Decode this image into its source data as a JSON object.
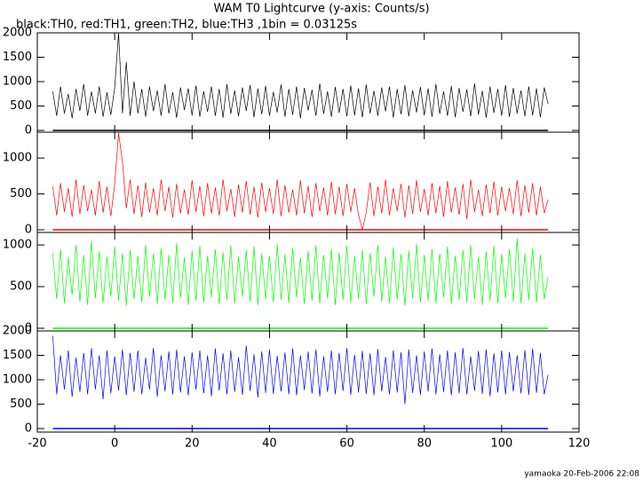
{
  "chart_data": {
    "type": "line",
    "title": "WAM T0 Lightcurve (y-axis: Counts/s)",
    "subtitle": "black:TH0, red:TH1, green:TH2, blue:TH3 ,1bin = 0.03125s",
    "footer": "yamaoka 20-Feb-2006 22:08",
    "xlim": [
      -20,
      120
    ],
    "xticks": [
      -20,
      0,
      20,
      40,
      60,
      80,
      100,
      120
    ],
    "x": [
      -16,
      -15,
      -14,
      -13,
      -12,
      -11,
      -10,
      -9,
      -8,
      -7,
      -6,
      -5,
      -4,
      -3,
      -2,
      -1,
      0,
      1,
      2,
      3,
      4,
      5,
      6,
      7,
      8,
      9,
      10,
      11,
      12,
      13,
      14,
      15,
      16,
      17,
      18,
      19,
      20,
      21,
      22,
      23,
      24,
      25,
      26,
      27,
      28,
      29,
      30,
      31,
      32,
      33,
      34,
      35,
      36,
      37,
      38,
      39,
      40,
      41,
      42,
      43,
      44,
      45,
      46,
      47,
      48,
      49,
      50,
      51,
      52,
      53,
      54,
      55,
      56,
      57,
      58,
      59,
      60,
      61,
      62,
      63,
      64,
      65,
      66,
      67,
      68,
      69,
      70,
      71,
      72,
      73,
      74,
      75,
      76,
      77,
      78,
      79,
      80,
      81,
      82,
      83,
      84,
      85,
      86,
      87,
      88,
      89,
      90,
      91,
      92,
      93,
      94,
      95,
      96,
      97,
      98,
      99,
      100,
      101,
      102,
      103,
      104,
      105,
      106,
      107,
      108,
      109,
      110,
      111,
      112
    ],
    "series": [
      {
        "color": "#000000",
        "ylim": [
          -36,
          2000
        ],
        "yticks": [
          0,
          500,
          1000,
          1500,
          2000
        ],
        "values": [
          800,
          300,
          900,
          350,
          750,
          250,
          850,
          400,
          950,
          300,
          800,
          350,
          900,
          280,
          780,
          320,
          870,
          2000,
          350,
          1400,
          300,
          1000,
          350,
          850,
          280,
          900,
          400,
          820,
          300,
          950,
          350,
          780,
          260,
          880,
          420,
          860,
          310,
          920,
          280,
          800,
          380,
          900,
          300,
          850,
          260,
          950,
          340,
          820,
          290,
          880,
          400,
          930,
          270,
          860,
          330,
          910,
          300,
          790,
          370,
          940,
          280,
          850,
          320,
          900,
          250,
          870,
          410,
          830,
          300,
          960,
          340,
          800,
          280,
          890,
          360,
          850,
          290,
          920,
          310,
          860,
          270,
          940,
          350,
          810,
          300,
          880,
          390,
          900,
          260,
          850,
          330,
          930,
          290,
          820,
          370,
          890,
          310,
          860,
          280,
          950,
          340,
          800,
          300,
          910,
          270,
          870,
          380,
          840,
          290,
          960,
          320,
          810,
          260,
          900,
          360,
          850,
          300,
          930,
          280,
          870,
          350,
          820,
          290,
          900,
          310,
          860,
          270,
          880,
          540
        ]
      },
      {
        "color": "#ff0000",
        "ylim": [
          -37,
          1360
        ],
        "yticks": [
          0,
          500,
          1000
        ],
        "values": [
          600,
          200,
          650,
          250,
          580,
          180,
          700,
          220,
          620,
          260,
          560,
          200,
          680,
          240,
          600,
          190,
          640,
          1350,
          950,
          300,
          700,
          220,
          620,
          180,
          660,
          240,
          580,
          200,
          700,
          260,
          600,
          170,
          640,
          230,
          560,
          210,
          690,
          250,
          610,
          190,
          650,
          230,
          590,
          200,
          700,
          260,
          570,
          180,
          630,
          240,
          680,
          210,
          600,
          170,
          660,
          250,
          580,
          220,
          700,
          190,
          620,
          240,
          560,
          200,
          690,
          230,
          610,
          180,
          650,
          260,
          590,
          200,
          670,
          220,
          600,
          190,
          640,
          250,
          580,
          210,
          0,
          240,
          660,
          190,
          600,
          230,
          700,
          200,
          580,
          260,
          640,
          170,
          620,
          220,
          690,
          250,
          570,
          200,
          650,
          230,
          610,
          180,
          680,
          240,
          590,
          210,
          640,
          150,
          700,
          250,
          560,
          190,
          630,
          230,
          670,
          200,
          600,
          260,
          580,
          220,
          690,
          190,
          620,
          240,
          650,
          200,
          600,
          230,
          420
        ]
      },
      {
        "color": "#00ff00",
        "ylim": [
          -32,
          1150
        ],
        "yticks": [
          0,
          500,
          1000
        ],
        "values": [
          900,
          350,
          950,
          300,
          850,
          400,
          1000,
          320,
          880,
          280,
          1050,
          360,
          920,
          300,
          860,
          380,
          980,
          330,
          900,
          270,
          940,
          350,
          870,
          310,
          1000,
          380,
          900,
          290,
          960,
          340,
          880,
          300,
          1020,
          360,
          850,
          280,
          930,
          330,
          990,
          310,
          870,
          370,
          950,
          290,
          910,
          340,
          1000,
          300,
          860,
          380,
          940,
          320,
          980,
          280,
          900,
          350,
          870,
          310,
          1010,
          340,
          890,
          300,
          960,
          370,
          850,
          290,
          930,
          330,
          1000,
          300,
          880,
          360,
          950,
          280,
          910,
          340,
          990,
          310,
          870,
          350,
          940,
          290,
          900,
          380,
          1000,
          320,
          860,
          300,
          970,
          340,
          890,
          270,
          930,
          360,
          1010,
          310,
          880,
          330,
          950,
          300,
          900,
          370,
          980,
          290,
          870,
          340,
          940,
          310,
          1000,
          350,
          860,
          280,
          920,
          330,
          990,
          300,
          890,
          360,
          950,
          320,
          1080,
          300,
          900,
          340,
          960,
          310,
          880,
          350,
          620
        ]
      },
      {
        "color": "#0000ff",
        "ylim": [
          -73,
          2000
        ],
        "yticks": [
          0,
          500,
          1000,
          1500,
          2000
        ],
        "values": [
          1900,
          700,
          1500,
          800,
          1600,
          650,
          1450,
          750,
          1550,
          700,
          1650,
          800,
          1500,
          600,
          1600,
          720,
          1480,
          780,
          1620,
          680,
          1550,
          750,
          1600,
          700,
          1450,
          800,
          1650,
          650,
          1500,
          760,
          1580,
          700,
          1620,
          740,
          1480,
          680,
          1560,
          800,
          1600,
          720,
          1500,
          660,
          1640,
          780,
          1540,
          700,
          1600,
          750,
          1460,
          690,
          1700,
          770,
          1520,
          640,
          1580,
          730,
          1620,
          710,
          1490,
          760,
          1560,
          700,
          1640,
          680,
          1500,
          790,
          1580,
          720,
          1620,
          660,
          1480,
          750,
          1600,
          700,
          1550,
          770,
          1650,
          690,
          1510,
          740,
          1590,
          710,
          1540,
          680,
          1630,
          760,
          1470,
          700,
          1600,
          740,
          1560,
          500,
          1620,
          730,
          1500,
          690,
          1580,
          760,
          1640,
          700,
          1520,
          750,
          1600,
          680,
          1560,
          720,
          1650,
          700,
          1480,
          770,
          1590,
          710,
          1620,
          660,
          1540,
          740,
          1600,
          700,
          1570,
          760,
          1500,
          720,
          1610,
          690,
          1640,
          730,
          1550,
          700,
          1100
        ]
      }
    ]
  }
}
